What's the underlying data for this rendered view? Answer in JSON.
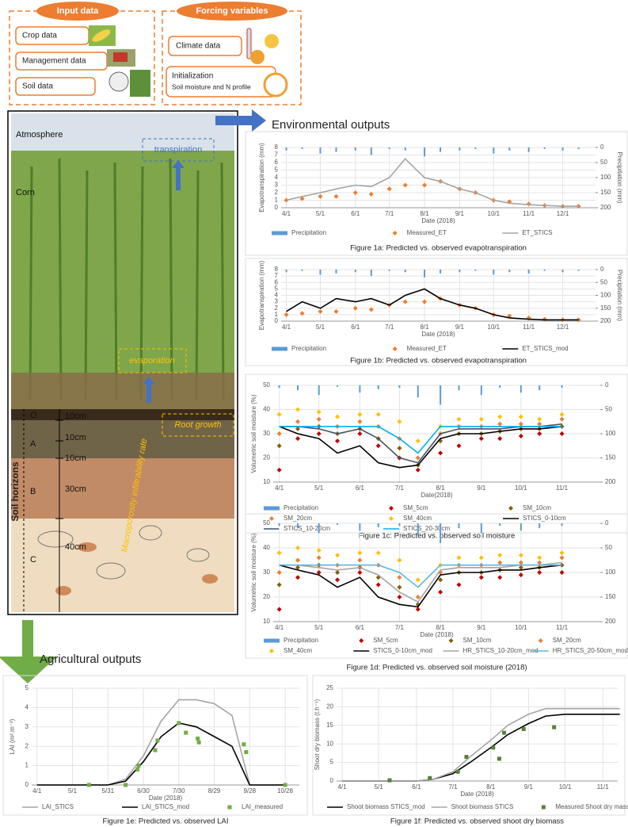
{
  "input_data": {
    "title": "Input data",
    "items": [
      "Crop data",
      "Management data",
      "Soil data"
    ]
  },
  "forcing_variables": {
    "title": "Forcing variables",
    "items": [
      "Climate data"
    ],
    "initialization": {
      "title": "Initialization",
      "subtitle": "Soil moisture and N profile"
    }
  },
  "soil_profile": {
    "atmosphere": "Atmosphere",
    "corn": "Corn",
    "transpiration": "transpiration",
    "evaporation": "evaporation",
    "root_growth": "Root growth",
    "macroporosity": "Macroporosity infiltrability rate",
    "soil_horizons": "Soil horizons",
    "horizons": [
      "O",
      "A",
      "B",
      "C"
    ],
    "depths": [
      "10cm",
      "10cm",
      "10cm",
      "30cm",
      "40cm"
    ]
  },
  "environmental_outputs": "Environmental outputs",
  "agricultural_outputs": "Agricultural outputs",
  "chart_data": [
    {
      "type": "line",
      "title": "Figure 1a: Predicted vs. observed evapotranspiration",
      "xlabel": "Date (2018)",
      "ylabel": "Evapotranspiration (mm)",
      "y2label": "Precipitation (mm)",
      "x": [
        "4/1",
        "4/15",
        "5/1",
        "5/15",
        "6/1",
        "6/15",
        "7/1",
        "7/15",
        "8/1",
        "8/15",
        "9/1",
        "9/15",
        "10/1",
        "10/15",
        "11/1",
        "11/15",
        "12/1",
        "12/15"
      ],
      "xticks": [
        "4/1",
        "5/1",
        "6/1",
        "7/1",
        "8/1",
        "9/1",
        "10/1",
        "11/1",
        "12/1"
      ],
      "ylim": [
        0,
        8
      ],
      "yticks": [
        0,
        1,
        2,
        3,
        4,
        5,
        6,
        7,
        8
      ],
      "y2lim": [
        0,
        200
      ],
      "y2ticks": [
        0,
        50,
        100,
        150,
        200
      ],
      "y2_inverted": true,
      "grid": true,
      "series": [
        {
          "name": "Precipitation",
          "color": "#5b9bd5",
          "style": "bar",
          "axis": "y2",
          "values": [
            10,
            5,
            20,
            15,
            10,
            25,
            5,
            10,
            30,
            15,
            10,
            5,
            20,
            10,
            15,
            5,
            10,
            5
          ]
        },
        {
          "name": "Measured_ET",
          "color": "#ed7d31",
          "style": "marker",
          "values": [
            1,
            1.2,
            1.5,
            1.5,
            2,
            1.8,
            2.5,
            3,
            3,
            3.5,
            2.5,
            2,
            1,
            0.8,
            0.5,
            0.3,
            0.2,
            0.2
          ]
        },
        {
          "name": "ET_STICS",
          "color": "#a5a5a5",
          "style": "line",
          "values": [
            1,
            1.5,
            2,
            2.5,
            3,
            2.8,
            4,
            6.5,
            4,
            3.5,
            2.5,
            2,
            1,
            0.6,
            0.4,
            0.3,
            0.2,
            0.2
          ]
        }
      ]
    },
    {
      "type": "line",
      "title": "Figure 1b: Predicted vs. observed evapotranspiration",
      "xlabel": "Date (2018)",
      "ylabel": "Evapotranspiration (mm)",
      "y2label": "Precipitation (mm)",
      "x": [
        "4/1",
        "4/15",
        "5/1",
        "5/15",
        "6/1",
        "6/15",
        "7/1",
        "7/15",
        "8/1",
        "8/15",
        "9/1",
        "9/15",
        "10/1",
        "10/15",
        "11/1",
        "11/15",
        "12/1",
        "12/15"
      ],
      "xticks": [
        "4/1",
        "5/1",
        "6/1",
        "7/1",
        "8/1",
        "9/1",
        "10/1",
        "11/1",
        "12/1"
      ],
      "ylim": [
        0,
        8
      ],
      "yticks": [
        0,
        1,
        2,
        3,
        4,
        5,
        6,
        7,
        8
      ],
      "y2lim": [
        0,
        200
      ],
      "y2ticks": [
        0,
        50,
        100,
        150,
        200
      ],
      "y2_inverted": true,
      "grid": true,
      "series": [
        {
          "name": "Precipitation",
          "color": "#5b9bd5",
          "style": "bar",
          "axis": "y2",
          "values": [
            10,
            5,
            20,
            15,
            10,
            25,
            5,
            10,
            30,
            15,
            10,
            5,
            20,
            10,
            15,
            5,
            10,
            5
          ]
        },
        {
          "name": "Measured_ET",
          "color": "#ed7d31",
          "style": "marker",
          "values": [
            1,
            1.2,
            1.5,
            1.5,
            2,
            1.8,
            2.5,
            3,
            3,
            3.5,
            2.5,
            2,
            1,
            0.8,
            0.5,
            0.3,
            0.2,
            0.2
          ]
        },
        {
          "name": "ET_STICS_mod",
          "color": "#000000",
          "style": "line",
          "values": [
            1.5,
            3,
            2,
            3.5,
            3,
            3.5,
            2.5,
            4,
            5,
            3.5,
            2.5,
            2,
            1,
            0.5,
            0.3,
            0.2,
            0.2,
            0.2
          ]
        }
      ]
    },
    {
      "type": "line",
      "title": "Figure 1c: Predicted vs. observed soil moisture",
      "xlabel": "Date(2018)",
      "ylabel": "Volumetric soil moisture (%)",
      "x": [
        "4/1",
        "4/15",
        "5/1",
        "5/15",
        "6/1",
        "6/15",
        "7/1",
        "7/15",
        "8/1",
        "8/15",
        "9/1",
        "9/15",
        "10/1",
        "10/15",
        "11/1"
      ],
      "xticks": [
        "4/1",
        "5/1",
        "6/1",
        "7/1",
        "8/1",
        "9/1",
        "10/1",
        "11/1"
      ],
      "ylim": [
        10,
        50
      ],
      "yticks": [
        10,
        20,
        30,
        40,
        50
      ],
      "y2lim": [
        0,
        200
      ],
      "y2ticks": [
        0,
        50,
        100,
        150,
        200
      ],
      "y2_inverted": true,
      "grid": true,
      "series": [
        {
          "name": "Precipitation",
          "color": "#5b9bd5",
          "style": "bar",
          "axis": "y2",
          "values": [
            5,
            10,
            20,
            3,
            15,
            8,
            5,
            25,
            40,
            10,
            20,
            5,
            15,
            10,
            5
          ]
        },
        {
          "name": "SM_5cm",
          "color": "#c00000",
          "style": "marker",
          "values": [
            15,
            28,
            30,
            27,
            30,
            25,
            20,
            15,
            22,
            25,
            28,
            28,
            29,
            30,
            30
          ]
        },
        {
          "name": "SM_10cm",
          "color": "#806000",
          "style": "marker",
          "values": [
            25,
            32,
            33,
            30,
            32,
            28,
            24,
            17,
            27,
            30,
            30,
            31,
            32,
            32,
            33
          ]
        },
        {
          "name": "SM_20cm",
          "color": "#ed7d31",
          "style": "marker",
          "values": [
            30,
            35,
            36,
            33,
            35,
            33,
            28,
            20,
            30,
            33,
            33,
            34,
            34,
            34,
            36
          ]
        },
        {
          "name": "SM_40cm",
          "color": "#ffc000",
          "style": "marker",
          "values": [
            38,
            40,
            39,
            37,
            38,
            38,
            35,
            27,
            33,
            36,
            36,
            37,
            37,
            36,
            38
          ]
        },
        {
          "name": "STICS_0-10cm",
          "color": "#000000",
          "style": "line",
          "values": [
            33,
            30,
            28,
            22,
            25,
            18,
            16,
            17,
            28,
            30,
            30,
            31,
            32,
            32,
            33
          ]
        },
        {
          "name": "STICS_10-20cm",
          "color": "#44546a",
          "style": "line",
          "values": [
            33,
            33,
            32,
            30,
            32,
            28,
            20,
            18,
            30,
            32,
            32,
            32,
            33,
            33,
            34
          ]
        },
        {
          "name": "STICS_20-30cm",
          "color": "#00b0f0",
          "style": "line",
          "values": [
            33,
            33,
            33,
            33,
            33,
            33,
            28,
            22,
            33,
            33,
            33,
            33,
            33,
            33,
            33
          ]
        }
      ]
    },
    {
      "type": "line",
      "title": "Figure 1d: Predicted vs. observed soil moisture (2018)",
      "xlabel": "Date (2018)",
      "ylabel": "Volumetric soil moisture (%)",
      "x": [
        "4/1",
        "4/15",
        "5/1",
        "5/15",
        "6/1",
        "6/15",
        "7/1",
        "7/15",
        "8/1",
        "8/15",
        "9/1",
        "9/15",
        "10/1",
        "10/15",
        "11/1"
      ],
      "xticks": [
        "4/1",
        "5/1",
        "6/1",
        "7/1",
        "8/1",
        "9/1",
        "10/1",
        "11/1"
      ],
      "ylim": [
        10,
        50
      ],
      "yticks": [
        10,
        20,
        30,
        40,
        50
      ],
      "y2lim": [
        0,
        200
      ],
      "y2ticks": [
        0,
        50,
        100,
        150,
        200
      ],
      "y2_inverted": true,
      "grid": true,
      "series": [
        {
          "name": "Precipitation",
          "color": "#5b9bd5",
          "style": "bar",
          "axis": "y2",
          "values": [
            5,
            10,
            20,
            3,
            15,
            8,
            5,
            25,
            40,
            10,
            20,
            5,
            15,
            10,
            5
          ]
        },
        {
          "name": "SM_5cm",
          "color": "#c00000",
          "style": "marker",
          "values": [
            15,
            28,
            30,
            27,
            30,
            25,
            20,
            15,
            22,
            25,
            28,
            28,
            29,
            30,
            30
          ]
        },
        {
          "name": "SM_10cm",
          "color": "#806000",
          "style": "marker",
          "values": [
            25,
            32,
            33,
            30,
            32,
            28,
            24,
            17,
            27,
            30,
            30,
            31,
            32,
            32,
            33
          ]
        },
        {
          "name": "SM_20cm",
          "color": "#ed7d31",
          "style": "marker",
          "values": [
            30,
            35,
            36,
            33,
            35,
            33,
            28,
            20,
            30,
            33,
            33,
            34,
            34,
            34,
            36
          ]
        },
        {
          "name": "SM_40cm",
          "color": "#ffc000",
          "style": "marker",
          "values": [
            38,
            40,
            39,
            37,
            38,
            38,
            35,
            27,
            33,
            36,
            36,
            37,
            37,
            36,
            38
          ]
        },
        {
          "name": "STICS_0-10cm_mod",
          "color": "#000000",
          "style": "line",
          "values": [
            33,
            31,
            29,
            24,
            28,
            20,
            17,
            16,
            29,
            30,
            30,
            31,
            31,
            32,
            33
          ]
        },
        {
          "name": "HR_STICS_10-20cm_mod",
          "color": "#a5a5a5",
          "style": "line",
          "values": [
            33,
            33,
            32,
            31,
            32,
            29,
            22,
            18,
            31,
            32,
            32,
            32,
            33,
            33,
            34
          ]
        },
        {
          "name": "HR_STICS_20-50cm_mod",
          "color": "#5bb8e0",
          "style": "line",
          "values": [
            33,
            33,
            33,
            33,
            33,
            33,
            30,
            24,
            33,
            33,
            33,
            33,
            33,
            33,
            33
          ]
        }
      ]
    },
    {
      "type": "line",
      "title": "Figure 1e: Predicted vs. observed LAI",
      "xlabel": "Date (2018)",
      "ylabel": "LAI (m².m⁻²)",
      "x": [
        "4/1",
        "4/16",
        "5/1",
        "5/16",
        "5/31",
        "6/15",
        "6/30",
        "7/15",
        "7/30",
        "8/14",
        "8/29",
        "9/13",
        "9/28",
        "10/13",
        "10/28"
      ],
      "xticks": [
        "4/1",
        "5/1",
        "5/31",
        "6/30",
        "7/30",
        "8/29",
        "9/28",
        "10/28"
      ],
      "ylim": [
        0,
        5
      ],
      "yticks": [
        0,
        1,
        2,
        3,
        4,
        5
      ],
      "grid": true,
      "series": [
        {
          "name": "LAI_STICS",
          "color": "#a5a5a5",
          "style": "line",
          "values": [
            0,
            0,
            0,
            0,
            0,
            0.3,
            1.5,
            3.3,
            4.4,
            4.4,
            4.2,
            3.6,
            0,
            0,
            0
          ]
        },
        {
          "name": "LAI_STICS_mod",
          "color": "#000000",
          "style": "line",
          "values": [
            0,
            0,
            0,
            0,
            0,
            0.2,
            1.2,
            2.5,
            3.2,
            3,
            2.5,
            2,
            0,
            0,
            0
          ]
        },
        {
          "name": "LAI_measured",
          "color": "#70ad47",
          "style": "square",
          "x": [
            "5/15",
            "6/15",
            "6/25",
            "6/26",
            "7/10",
            "7/12",
            "7/30",
            "8/5",
            "8/15",
            "8/16",
            "9/23",
            "9/25",
            "10/28"
          ],
          "values": [
            0,
            0,
            0.8,
            1,
            1.8,
            2.3,
            3.2,
            2.7,
            2.4,
            2.2,
            2.1,
            1.7,
            0
          ]
        }
      ]
    },
    {
      "type": "line",
      "title": "Figure 1f: Predicted vs. observed shoot dry biomass",
      "xlabel": "Date (2018)",
      "ylabel": "Shoot dry biomass (t.h⁻¹)",
      "x": [
        "4/1",
        "4/15",
        "5/1",
        "5/15",
        "6/1",
        "6/15",
        "7/1",
        "7/15",
        "8/1",
        "8/15",
        "9/1",
        "9/15",
        "10/1",
        "10/15",
        "11/1",
        "11/15"
      ],
      "xticks": [
        "4/1",
        "5/1",
        "6/1",
        "7/1",
        "8/1",
        "9/1",
        "10/1",
        "11/1"
      ],
      "ylim": [
        0,
        25
      ],
      "yticks": [
        0,
        5,
        10,
        15,
        20,
        25
      ],
      "grid": true,
      "series": [
        {
          "name": "Shoot biomass STICS_mod",
          "color": "#000000",
          "style": "line",
          "values": [
            0,
            0,
            0,
            0,
            0,
            0.5,
            2,
            5,
            9,
            12.5,
            15.5,
            17.5,
            18,
            18,
            18,
            18
          ]
        },
        {
          "name": "Shoot biomass STICS",
          "color": "#a5a5a5",
          "style": "line",
          "values": [
            0,
            0,
            0,
            0,
            0,
            0.5,
            2.5,
            6.5,
            11,
            15,
            18,
            19.5,
            19.5,
            19.5,
            19.5,
            19.5
          ]
        },
        {
          "name": "Measured Shoot dry mass",
          "color": "#548235",
          "style": "square",
          "x": [
            "5/10",
            "6/12",
            "7/5",
            "7/12",
            "8/3",
            "8/8",
            "8/12",
            "8/28",
            "9/22"
          ],
          "values": [
            0.2,
            0.8,
            2.5,
            6.5,
            9,
            6,
            13,
            14,
            14.5
          ]
        }
      ]
    }
  ]
}
